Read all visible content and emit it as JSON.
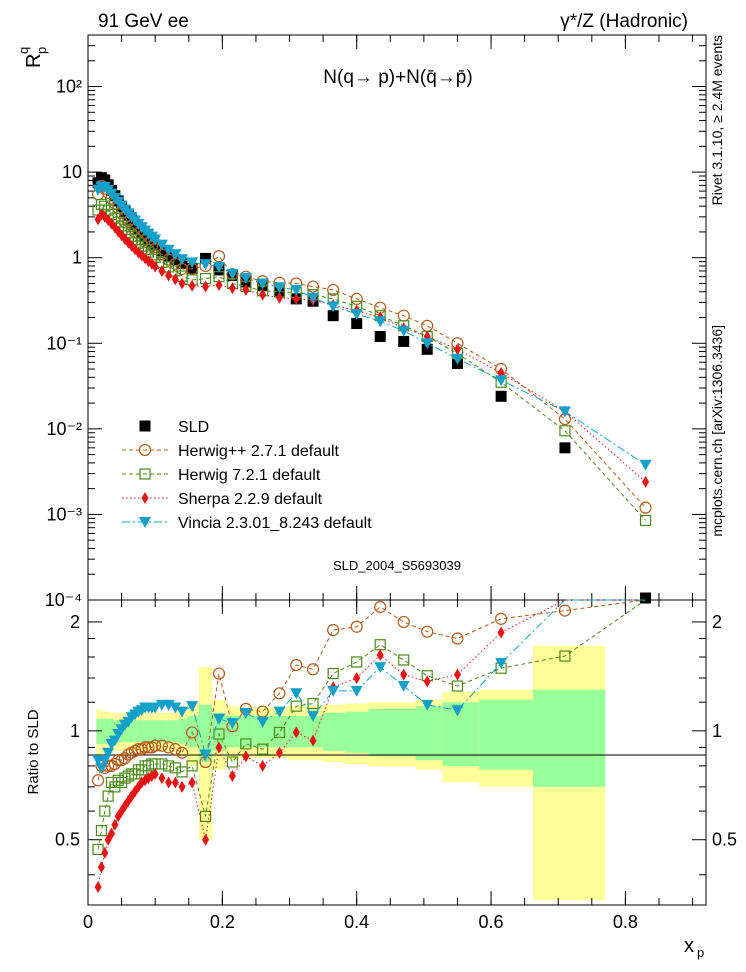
{
  "header": {
    "left": "91 GeV ee",
    "right": "γ*/Z (Hadronic)"
  },
  "side_labels": {
    "top": "Rivet 3.1.10, ≥ 2.4M events",
    "bottom": "mcplots.cern.ch [arXiv:1306.3436]"
  },
  "chart_data": {
    "type": "scatter",
    "title": "N(q→ p)+N(q̄→p̄)",
    "watermark": "SLD_2004_S5693039",
    "xlabel": "x",
    "xlabel_sub": "p",
    "ylabel": "R",
    "ylabel_sup": "q",
    "ylabel_sub": "p",
    "ratio_ylabel": "Ratio to SLD",
    "xlim": [
      0,
      0.92
    ],
    "ylim": [
      0.0001,
      400
    ],
    "yscale": "log",
    "ratio_ylim": [
      0.33,
      2.3
    ],
    "x_ticks": [
      "0",
      "0.2",
      "0.4",
      "0.6",
      "0.8"
    ],
    "y_ticks": [
      "10⁻⁴",
      "10⁻³",
      "10⁻²",
      "10⁻¹",
      "1",
      "10",
      "10²"
    ],
    "ratio_ticks": [
      "0.5",
      "1",
      "2"
    ],
    "legend_position": "lower-left",
    "x": [
      0.015,
      0.02,
      0.025,
      0.03,
      0.035,
      0.04,
      0.045,
      0.05,
      0.055,
      0.06,
      0.065,
      0.07,
      0.075,
      0.08,
      0.085,
      0.09,
      0.095,
      0.1,
      0.11,
      0.12,
      0.13,
      0.14,
      0.155,
      0.175,
      0.195,
      0.215,
      0.235,
      0.26,
      0.285,
      0.31,
      0.335,
      0.365,
      0.4,
      0.435,
      0.47,
      0.505,
      0.55,
      0.615,
      0.71,
      0.83
    ],
    "series": [
      {
        "name": "SLD",
        "color": "#000000",
        "marker": "square-filled",
        "values": [
          7.5,
          8.6,
          8.1,
          7.1,
          6.1,
          5.3,
          4.6,
          4.0,
          3.5,
          3.1,
          2.75,
          2.45,
          2.2,
          2.0,
          1.8,
          1.65,
          1.52,
          1.4,
          1.2,
          1.05,
          0.95,
          0.85,
          0.75,
          0.98,
          0.72,
          0.62,
          0.52,
          0.47,
          0.4,
          0.33,
          0.31,
          0.21,
          0.17,
          0.12,
          0.105,
          0.085,
          0.058,
          0.024,
          0.006,
          0.0001
        ],
        "ratio": [
          1,
          1,
          1,
          1,
          1,
          1,
          1,
          1,
          1,
          1,
          1,
          1,
          1,
          1,
          1,
          1,
          1,
          1,
          1,
          1,
          1,
          1,
          1,
          1,
          1,
          1,
          1,
          1,
          1,
          1,
          1,
          1,
          1,
          1,
          1,
          1,
          1,
          1,
          1,
          1
        ],
        "band_inner": [
          0.08,
          0.08,
          0.08,
          0.08,
          0.08,
          0.07,
          0.07,
          0.07,
          0.07,
          0.07,
          0.07,
          0.07,
          0.07,
          0.07,
          0.07,
          0.07,
          0.07,
          0.07,
          0.07,
          0.07,
          0.07,
          0.08,
          0.1,
          0.18,
          0.12,
          0.1,
          0.1,
          0.1,
          0.1,
          0.1,
          0.1,
          0.12,
          0.13,
          0.15,
          0.15,
          0.17,
          0.2,
          0.22,
          0.3,
          0.0
        ],
        "band_outer": [
          0.15,
          0.14,
          0.13,
          0.13,
          0.12,
          0.12,
          0.12,
          0.12,
          0.12,
          0.12,
          0.12,
          0.12,
          0.12,
          0.12,
          0.12,
          0.12,
          0.12,
          0.12,
          0.12,
          0.12,
          0.13,
          0.15,
          0.2,
          0.5,
          0.22,
          0.17,
          0.16,
          0.16,
          0.16,
          0.17,
          0.17,
          0.18,
          0.19,
          0.2,
          0.2,
          0.22,
          0.28,
          0.3,
          0.72,
          0.0
        ]
      },
      {
        "name": "Herwig++ 2.7.1 default",
        "color": "#b35a1a",
        "marker": "circle-open",
        "dash": "4,3",
        "values": [
          5.5,
          6.9,
          6.4,
          5.7,
          4.9,
          4.3,
          3.8,
          3.3,
          2.95,
          2.65,
          2.38,
          2.15,
          1.95,
          1.78,
          1.62,
          1.49,
          1.37,
          1.27,
          1.09,
          0.95,
          0.85,
          0.74,
          0.74,
          0.8,
          1.04,
          0.64,
          0.6,
          0.53,
          0.51,
          0.5,
          0.46,
          0.42,
          0.33,
          0.26,
          0.21,
          0.16,
          0.1,
          0.05,
          0.013,
          0.0012
        ],
        "ratio": [
          0.73,
          0.8,
          0.79,
          0.8,
          0.8,
          0.81,
          0.83,
          0.83,
          0.84,
          0.86,
          0.87,
          0.88,
          0.89,
          0.89,
          0.9,
          0.9,
          0.9,
          0.91,
          0.91,
          0.9,
          0.89,
          0.87,
          0.99,
          0.82,
          1.44,
          1.03,
          1.15,
          1.13,
          1.27,
          1.52,
          1.48,
          1.9,
          1.94,
          2.2,
          2.0,
          1.88,
          1.8,
          2.04,
          2.15,
          12
        ]
      },
      {
        "name": "Herwig 7.2.1 default",
        "color": "#4b8a1a",
        "marker": "square-open",
        "dash": "4,3",
        "values": [
          3.6,
          4.2,
          4.0,
          3.6,
          3.2,
          2.9,
          2.6,
          2.35,
          2.15,
          1.95,
          1.78,
          1.62,
          1.48,
          1.36,
          1.25,
          1.16,
          1.08,
          1.01,
          0.88,
          0.78,
          0.7,
          0.61,
          0.55,
          0.57,
          0.6,
          0.5,
          0.46,
          0.41,
          0.4,
          0.39,
          0.37,
          0.33,
          0.27,
          0.21,
          0.16,
          0.12,
          0.076,
          0.035,
          0.0095,
          0.00085
        ],
        "ratio": [
          0.47,
          0.53,
          0.6,
          0.66,
          0.72,
          0.7,
          0.73,
          0.72,
          0.74,
          0.75,
          0.76,
          0.76,
          0.78,
          0.78,
          0.8,
          0.8,
          0.81,
          0.81,
          0.81,
          0.8,
          0.79,
          0.77,
          0.8,
          0.58,
          0.98,
          0.82,
          0.92,
          0.89,
          0.99,
          1.17,
          1.19,
          1.44,
          1.55,
          1.73,
          1.57,
          1.42,
          1.33,
          1.49,
          1.61,
          9
        ]
      },
      {
        "name": "Sherpa 2.2.9 default",
        "color": "#e61414",
        "marker": "diamond-filled",
        "dash": "1.5,2.5",
        "values": [
          2.8,
          3.2,
          3.0,
          2.75,
          2.5,
          2.25,
          2.02,
          1.82,
          1.65,
          1.5,
          1.37,
          1.25,
          1.15,
          1.06,
          0.98,
          0.91,
          0.85,
          0.79,
          0.7,
          0.62,
          0.56,
          0.5,
          0.47,
          0.46,
          0.48,
          0.44,
          0.42,
          0.37,
          0.34,
          0.33,
          0.32,
          0.28,
          0.24,
          0.2,
          0.15,
          0.12,
          0.085,
          0.045,
          0.016,
          0.0024
        ],
        "ratio": [
          0.37,
          0.42,
          0.46,
          0.5,
          0.52,
          0.55,
          0.58,
          0.6,
          0.62,
          0.64,
          0.66,
          0.68,
          0.7,
          0.72,
          0.73,
          0.74,
          0.75,
          0.76,
          0.74,
          0.72,
          0.72,
          0.7,
          0.72,
          0.5,
          0.9,
          0.75,
          0.85,
          0.8,
          0.87,
          0.99,
          0.94,
          1.32,
          1.4,
          1.62,
          1.43,
          1.37,
          1.43,
          1.87,
          2.57,
          24
        ]
      },
      {
        "name": "Vincia 2.3.01_8.243 default",
        "color": "#14a0c8",
        "marker": "triangle-down-filled",
        "dash": "8,3,2,3",
        "values": [
          6.2,
          6.8,
          6.7,
          6.2,
          5.6,
          5.0,
          4.5,
          4.05,
          3.65,
          3.3,
          3.0,
          2.72,
          2.48,
          2.27,
          2.08,
          1.91,
          1.76,
          1.63,
          1.42,
          1.24,
          1.1,
          0.96,
          0.88,
          0.84,
          0.78,
          0.65,
          0.58,
          0.5,
          0.45,
          0.42,
          0.34,
          0.27,
          0.22,
          0.18,
          0.14,
          0.1,
          0.066,
          0.037,
          0.016,
          0.0038
        ],
        "ratio": [
          0.83,
          0.79,
          0.83,
          0.87,
          0.92,
          0.94,
          0.98,
          1.01,
          1.04,
          1.06,
          1.09,
          1.11,
          1.13,
          1.14,
          1.16,
          1.16,
          1.16,
          1.16,
          1.18,
          1.18,
          1.16,
          1.13,
          1.17,
          0.86,
          1.08,
          1.05,
          1.12,
          1.06,
          1.13,
          1.27,
          1.1,
          1.29,
          1.29,
          1.5,
          1.33,
          1.18,
          1.14,
          1.54,
          2.67,
          38
        ]
      }
    ]
  }
}
